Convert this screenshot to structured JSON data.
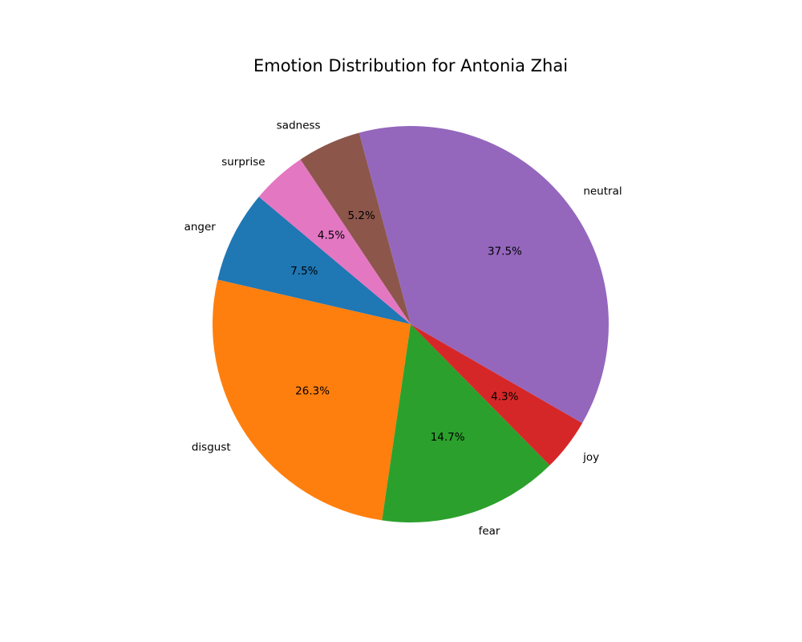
{
  "chart_data": {
    "type": "pie",
    "title": "Emotion Distribution for Antonia Zhai",
    "start_angle_deg": 140,
    "direction": "counterclockwise",
    "legend": "none",
    "slices": [
      {
        "label": "anger",
        "value": 7.5,
        "pct_label": "7.5%",
        "color": "#1f77b4"
      },
      {
        "label": "disgust",
        "value": 26.3,
        "pct_label": "26.3%",
        "color": "#ff7f0e"
      },
      {
        "label": "fear",
        "value": 14.7,
        "pct_label": "14.7%",
        "color": "#2ca02c"
      },
      {
        "label": "joy",
        "value": 4.3,
        "pct_label": "4.3%",
        "color": "#d62728"
      },
      {
        "label": "neutral",
        "value": 37.5,
        "pct_label": "37.5%",
        "color": "#9467bd"
      },
      {
        "label": "sadness",
        "value": 5.2,
        "pct_label": "5.2%",
        "color": "#8c564b"
      },
      {
        "label": "surprise",
        "value": 4.5,
        "pct_label": "4.5%",
        "color": "#e377c2"
      }
    ]
  }
}
